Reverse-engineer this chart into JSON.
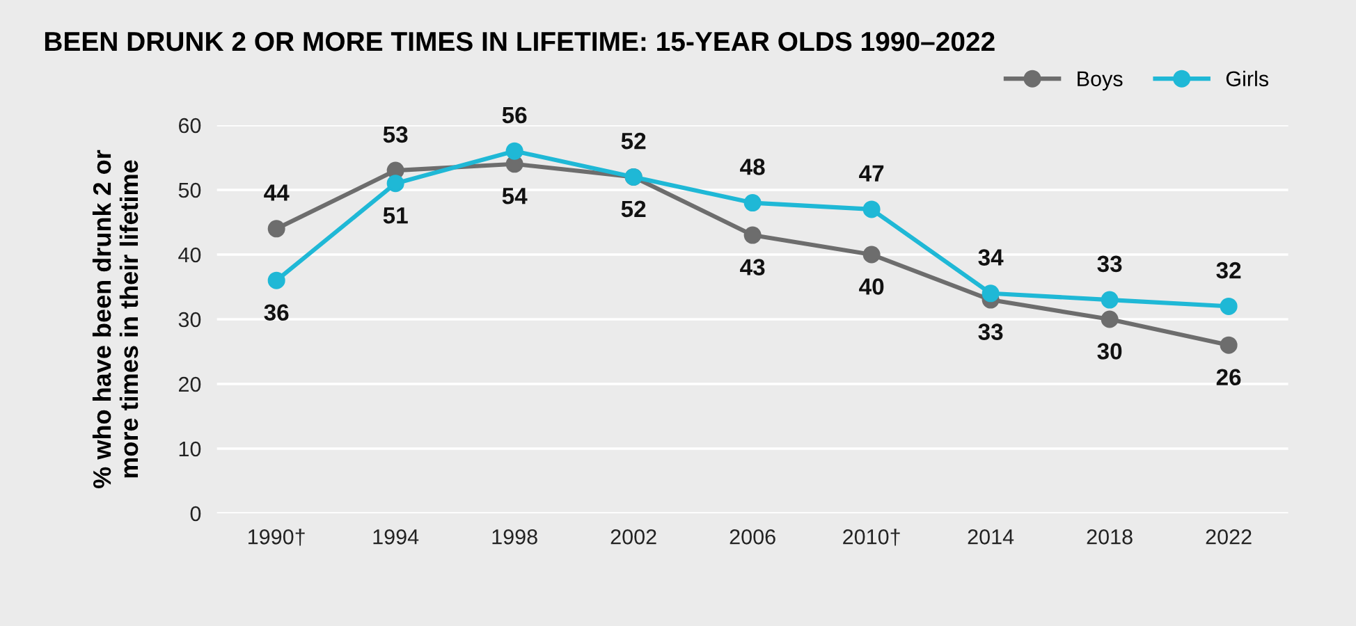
{
  "chart_data": {
    "type": "line",
    "title": "BEEN DRUNK 2 OR MORE TIMES IN LIFETIME: 15-YEAR OLDS 1990–2022",
    "ylabel": "% who have been drunk 2 or\nmore times in their lifetime",
    "categories": [
      "1990†",
      "1994",
      "1998",
      "2002",
      "2006",
      "2010†",
      "2014",
      "2018",
      "2022"
    ],
    "series": [
      {
        "name": "Boys",
        "color": "#6d6d6d",
        "values": [
          44,
          53,
          54,
          52,
          43,
          40,
          33,
          30,
          26
        ]
      },
      {
        "name": "Girls",
        "color": "#1fb8d6",
        "values": [
          36,
          51,
          56,
          52,
          48,
          47,
          34,
          33,
          32
        ]
      }
    ],
    "ylim": [
      0,
      60
    ],
    "yticks": [
      0,
      10,
      20,
      30,
      40,
      50,
      60
    ],
    "grid": "y",
    "legend": "top right",
    "marker": "circle",
    "line_style": "solid",
    "data_labels": true
  }
}
